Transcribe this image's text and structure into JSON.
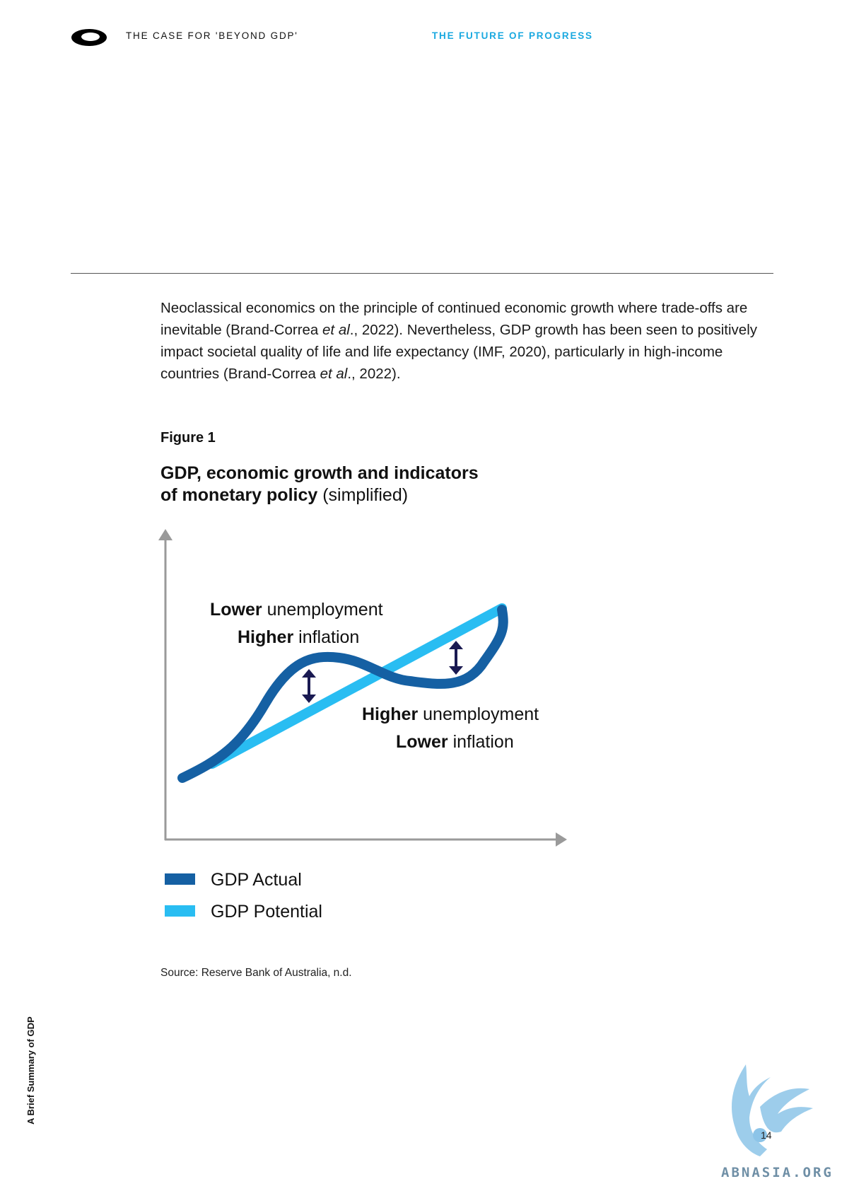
{
  "header": {
    "left_title": "THE CASE FOR 'BEYOND GDP'",
    "right_title": "THE FUTURE OF PROGRESS",
    "logo_icon": "ring-logo-icon"
  },
  "body": {
    "paragraph_parts": [
      "Neoclassical economics on the principle of continued economic growth where trade-offs are inevitable (Brand-Correa ",
      "et al",
      "., 2022). Nevertheless, GDP growth has been seen to positively impact societal quality of life and life expectancy (IMF, 2020), particularly in high-income countries (Brand-Correa ",
      "et al",
      "., 2022)."
    ]
  },
  "figure": {
    "label": "Figure 1",
    "title_bold_1": "GDP, economic growth and indicators",
    "title_bold_2": "of monetary policy",
    "title_normal": " (simplified)",
    "annotation_top": {
      "bold": "Lower",
      "normal": " unemployment",
      "bold2": "Higher",
      "normal2": " inflation"
    },
    "annotation_bottom": {
      "bold": "Higher",
      "normal": " unemployment",
      "bold2": "Lower",
      "normal2": " inflation"
    },
    "legend": [
      {
        "label": "GDP Actual",
        "color": "#1560a3"
      },
      {
        "label": "GDP Potential",
        "color": "#29bdf2"
      }
    ],
    "source": "Source: Reserve Bank of Australia, n.d."
  },
  "chart_data": {
    "type": "line",
    "title": "GDP, economic growth and indicators of monetary policy (simplified)",
    "xlabel": "",
    "ylabel": "",
    "series": [
      {
        "name": "GDP Actual",
        "color": "#1560a3",
        "shape": "cyclical wave around trend"
      },
      {
        "name": "GDP Potential",
        "color": "#29bdf2",
        "shape": "straight upward trend"
      }
    ],
    "annotations": [
      "Lower unemployment / Higher inflation",
      "Higher unemployment / Lower inflation"
    ],
    "grid": false,
    "legend": "bottom-left"
  },
  "sidebar": {
    "vertical_text": "A Brief Summary of GDP"
  },
  "footer": {
    "page_number": "14",
    "watermark": "ABNASIA.ORG"
  }
}
